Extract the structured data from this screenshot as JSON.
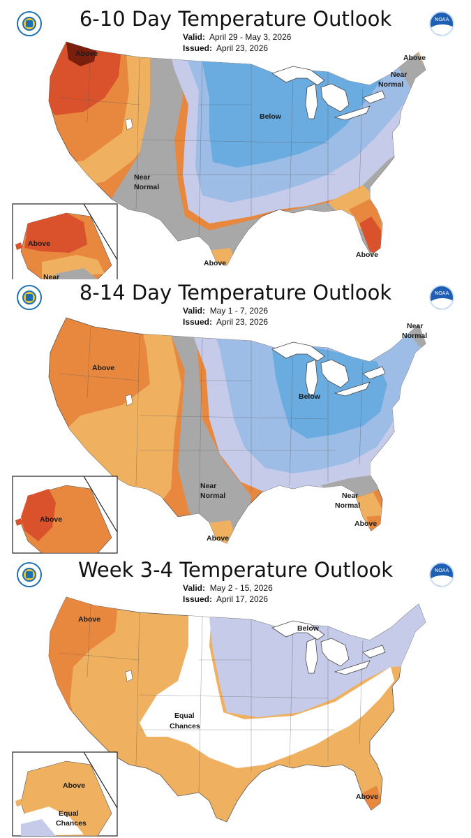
{
  "panels": [
    {
      "title": "6-10 Day Temperature Outlook",
      "valid_label": "Valid:",
      "valid": "April 29 - May 3, 2026",
      "issued_label": "Issued:",
      "issued": "April 23, 2026",
      "labels": {
        "above_nw": "Above",
        "above_ne": "Above",
        "near_ne_1": "Near",
        "near_ne_2": "Normal",
        "below": "Below",
        "near_sw_1": "Near",
        "near_sw_2": "Normal",
        "above_tx": "Above",
        "above_fl": "Above",
        "ak_above": "Above",
        "ak_near": "Near"
      }
    },
    {
      "title": "8-14 Day Temperature Outlook",
      "valid_label": "Valid:",
      "valid": "May 1 - 7, 2026",
      "issued_label": "Issued:",
      "issued": "April 23, 2026",
      "labels": {
        "above_w": "Above",
        "near_ne_1": "Near",
        "near_ne_2": "Normal",
        "below": "Below",
        "near_s_1": "Near",
        "near_s_2": "Normal",
        "near_se_1": "Near",
        "near_se_2": "Normal",
        "above_fl": "Above",
        "above_tx": "Above",
        "ak_above": "Above"
      }
    },
    {
      "title": "Week 3-4 Temperature Outlook",
      "valid_label": "Valid:",
      "valid": "May 2 - 15, 2026",
      "issued_label": "Issued:",
      "issued": "April 17, 2026",
      "labels": {
        "above_nw": "Above",
        "below": "Below",
        "ec_1": "Equal",
        "ec_2": "Chances",
        "above_fl": "Above",
        "ak_above": "Above",
        "ak_ec_1": "Equal",
        "ak_ec_2": "Chances"
      }
    }
  ],
  "colors": {
    "above_dark": "#7a1e0e",
    "above_strong": "#d9522b",
    "above_mid": "#e8883f",
    "above_light": "#efb060",
    "near_normal": "#a8a8a8",
    "below_light": "#c5cbe8",
    "below_mid": "#9dbce6",
    "below_strong": "#6aabe0",
    "equal_chances": "#ffffff",
    "lakes": "#ffffff"
  }
}
